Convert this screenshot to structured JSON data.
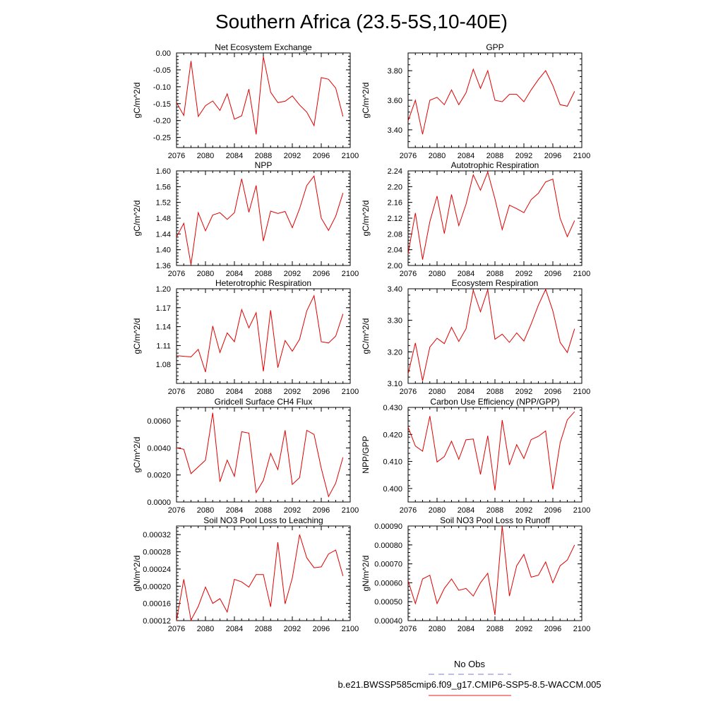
{
  "figure": {
    "title": "Southern Africa (23.5-5S,10-40E)",
    "legend": {
      "obs_label": "No Obs",
      "obs_color": "#7b7bd6",
      "model_label": "b.e21.BWSSP585cmip6.f09_g17.CMIP6-SSP5-8.5-WACCM.005",
      "model_color": "#e02020"
    },
    "line_color": "#e00000"
  },
  "chart_data": [
    {
      "type": "line",
      "title": "Net Ecosystem Exchange",
      "ylabel": "gC/m^2/d",
      "xlim": [
        2076,
        2100
      ],
      "ylim": [
        -0.28,
        0.0
      ],
      "xticks": [
        2076,
        2080,
        2084,
        2088,
        2092,
        2096,
        2100
      ],
      "yticks": [
        "0.00",
        "-0.05",
        "-0.10",
        "-0.15",
        "-0.20",
        "-0.25"
      ],
      "x": [
        2076,
        2077,
        2078,
        2079,
        2080,
        2081,
        2082,
        2083,
        2084,
        2085,
        2086,
        2087,
        2088,
        2089,
        2090,
        2091,
        2092,
        2093,
        2094,
        2095,
        2096,
        2097,
        2098,
        2099
      ],
      "y": [
        -0.147,
        -0.185,
        -0.024,
        -0.188,
        -0.156,
        -0.142,
        -0.17,
        -0.121,
        -0.196,
        -0.186,
        -0.107,
        -0.241,
        -0.011,
        -0.116,
        -0.147,
        -0.143,
        -0.127,
        -0.154,
        -0.175,
        -0.215,
        -0.073,
        -0.078,
        -0.104,
        -0.188
      ]
    },
    {
      "type": "line",
      "title": "GPP",
      "ylabel": "gC/m^2/d",
      "xlim": [
        2076,
        2100
      ],
      "ylim": [
        3.28,
        3.92
      ],
      "xticks": [
        2076,
        2080,
        2084,
        2088,
        2092,
        2096,
        2100
      ],
      "yticks": [
        "3.80",
        "3.60",
        "3.40"
      ],
      "x": [
        2076,
        2077,
        2078,
        2079,
        2080,
        2081,
        2082,
        2083,
        2084,
        2085,
        2086,
        2087,
        2088,
        2089,
        2090,
        2091,
        2092,
        2093,
        2094,
        2095,
        2096,
        2097,
        2098,
        2099
      ],
      "y": [
        3.46,
        3.6,
        3.37,
        3.6,
        3.62,
        3.57,
        3.67,
        3.57,
        3.65,
        3.81,
        3.68,
        3.8,
        3.6,
        3.59,
        3.64,
        3.64,
        3.59,
        3.67,
        3.74,
        3.8,
        3.7,
        3.57,
        3.56,
        3.66
      ]
    },
    {
      "type": "line",
      "title": "NPP",
      "ylabel": "gC/m^2/d",
      "xlim": [
        2076,
        2100
      ],
      "ylim": [
        1.36,
        1.6
      ],
      "xticks": [
        2076,
        2080,
        2084,
        2088,
        2092,
        2096,
        2100
      ],
      "yticks": [
        "1.60",
        "1.56",
        "1.52",
        "1.48",
        "1.44",
        "1.40",
        "1.36"
      ],
      "x": [
        2076,
        2077,
        2078,
        2079,
        2080,
        2081,
        2082,
        2083,
        2084,
        2085,
        2086,
        2087,
        2088,
        2089,
        2090,
        2091,
        2092,
        2093,
        2094,
        2095,
        2096,
        2097,
        2098,
        2099
      ],
      "y": [
        1.432,
        1.467,
        1.362,
        1.494,
        1.448,
        1.488,
        1.494,
        1.477,
        1.494,
        1.58,
        1.495,
        1.563,
        1.422,
        1.498,
        1.492,
        1.497,
        1.456,
        1.504,
        1.563,
        1.587,
        1.48,
        1.449,
        1.485,
        1.544
      ]
    },
    {
      "type": "line",
      "title": "Autotrophic Respiration",
      "ylabel": "gC/m^2/d",
      "xlim": [
        2076,
        2100
      ],
      "ylim": [
        2.0,
        2.24
      ],
      "xticks": [
        2076,
        2080,
        2084,
        2088,
        2092,
        2096,
        2100
      ],
      "yticks": [
        "2.24",
        "2.20",
        "2.16",
        "2.12",
        "2.08",
        "2.04",
        "2.00"
      ],
      "x": [
        2076,
        2077,
        2078,
        2079,
        2080,
        2081,
        2082,
        2083,
        2084,
        2085,
        2086,
        2087,
        2088,
        2089,
        2090,
        2091,
        2092,
        2093,
        2094,
        2095,
        2096,
        2097,
        2098,
        2099
      ],
      "y": [
        2.03,
        2.133,
        2.015,
        2.111,
        2.176,
        2.081,
        2.18,
        2.101,
        2.155,
        2.23,
        2.191,
        2.237,
        2.169,
        2.091,
        2.153,
        2.144,
        2.134,
        2.167,
        2.183,
        2.212,
        2.219,
        2.12,
        2.073,
        2.114
      ]
    },
    {
      "type": "line",
      "title": "Heterotrophic Respiration",
      "ylabel": "gC/m^2/d",
      "xlim": [
        2076,
        2100
      ],
      "ylim": [
        1.05,
        1.2
      ],
      "xticks": [
        2076,
        2080,
        2084,
        2088,
        2092,
        2096,
        2100
      ],
      "yticks": [
        "1.20",
        "1.17",
        "1.14",
        "1.11",
        "1.08"
      ],
      "x": [
        2076,
        2077,
        2078,
        2079,
        2080,
        2081,
        2082,
        2083,
        2084,
        2085,
        2086,
        2087,
        2088,
        2089,
        2090,
        2091,
        2092,
        2093,
        2094,
        2095,
        2096,
        2097,
        2098,
        2099
      ],
      "y": [
        1.094,
        1.093,
        1.092,
        1.104,
        1.068,
        1.141,
        1.099,
        1.13,
        1.116,
        1.167,
        1.138,
        1.162,
        1.069,
        1.166,
        1.075,
        1.118,
        1.101,
        1.12,
        1.165,
        1.189,
        1.116,
        1.114,
        1.125,
        1.16
      ]
    },
    {
      "type": "line",
      "title": "Ecosystem Respiration",
      "ylabel": "gC/m^2/d",
      "xlim": [
        2076,
        2100
      ],
      "ylim": [
        3.1,
        3.4
      ],
      "xticks": [
        2076,
        2080,
        2084,
        2088,
        2092,
        2096,
        2100
      ],
      "yticks": [
        "3.40",
        "3.30",
        "3.20",
        "3.10"
      ],
      "x": [
        2076,
        2077,
        2078,
        2079,
        2080,
        2081,
        2082,
        2083,
        2084,
        2085,
        2086,
        2087,
        2088,
        2089,
        2090,
        2091,
        2092,
        2093,
        2094,
        2095,
        2096,
        2097,
        2098,
        2099
      ],
      "y": [
        3.13,
        3.228,
        3.108,
        3.215,
        3.243,
        3.226,
        3.278,
        3.233,
        3.273,
        3.395,
        3.327,
        3.397,
        3.24,
        3.256,
        3.23,
        3.26,
        3.234,
        3.288,
        3.348,
        3.398,
        3.33,
        3.23,
        3.198,
        3.273
      ]
    },
    {
      "type": "line",
      "title": "Gridcell Surface CH4 Flux",
      "ylabel": "gC/m^2/d",
      "xlim": [
        2076,
        2100
      ],
      "ylim": [
        0.0,
        0.007
      ],
      "xticks": [
        2076,
        2080,
        2084,
        2088,
        2092,
        2096,
        2100
      ],
      "yticks": [
        "0.0060",
        "0.0040",
        "0.0020",
        "0.0000"
      ],
      "x": [
        2076,
        2077,
        2078,
        2079,
        2080,
        2081,
        2082,
        2083,
        2084,
        2085,
        2086,
        2087,
        2088,
        2089,
        2090,
        2091,
        2092,
        2093,
        2094,
        2095,
        2096,
        2097,
        2098,
        2099
      ],
      "y": [
        0.004,
        0.0039,
        0.0021,
        0.0026,
        0.0031,
        0.0066,
        0.0015,
        0.0031,
        0.0019,
        0.0052,
        0.0051,
        0.0007,
        0.0016,
        0.0036,
        0.0024,
        0.0053,
        0.0013,
        0.0018,
        0.0053,
        0.005,
        0.0025,
        0.0004,
        0.0014,
        0.0033
      ]
    },
    {
      "type": "line",
      "title": "Carbon Use Efficiency (NPP/GPP)",
      "ylabel": "NPP/GPP",
      "xlim": [
        2076,
        2100
      ],
      "ylim": [
        0.395,
        0.43
      ],
      "xticks": [
        2076,
        2080,
        2084,
        2088,
        2092,
        2096,
        2100
      ],
      "yticks": [
        "0.430",
        "0.420",
        "0.410",
        "0.400"
      ],
      "x": [
        2076,
        2077,
        2078,
        2079,
        2080,
        2081,
        2082,
        2083,
        2084,
        2085,
        2086,
        2087,
        2088,
        2089,
        2090,
        2091,
        2092,
        2093,
        2094,
        2095,
        2096,
        2097,
        2098,
        2099
      ],
      "y": [
        0.4227,
        0.4157,
        0.4138,
        0.4268,
        0.4098,
        0.4118,
        0.4175,
        0.4108,
        0.418,
        0.4183,
        0.4052,
        0.4195,
        0.3993,
        0.4253,
        0.4087,
        0.4162,
        0.4111,
        0.4181,
        0.4193,
        0.4213,
        0.3997,
        0.4168,
        0.4254,
        0.4284
      ]
    },
    {
      "type": "line",
      "title": "Soil NO3 Pool Loss to Leaching",
      "ylabel": "gN/m^2/d",
      "xlim": [
        2076,
        2100
      ],
      "ylim": [
        0.00012,
        0.00034
      ],
      "xticks": [
        2076,
        2080,
        2084,
        2088,
        2092,
        2096,
        2100
      ],
      "yticks": [
        "0.00032",
        "0.00028",
        "0.00024",
        "0.00020",
        "0.00016",
        "0.00012"
      ],
      "x": [
        2076,
        2077,
        2078,
        2079,
        2080,
        2081,
        2082,
        2083,
        2084,
        2085,
        2086,
        2087,
        2088,
        2089,
        2090,
        2091,
        2092,
        2093,
        2094,
        2095,
        2096,
        2097,
        2098,
        2099
      ],
      "y": [
        0.00012,
        0.000216,
        0.000121,
        0.000153,
        0.000198,
        0.00016,
        0.000171,
        0.00014,
        0.000216,
        0.00021,
        0.000198,
        0.000227,
        0.000227,
        0.000152,
        0.000302,
        0.000159,
        0.000219,
        0.00032,
        0.000266,
        0.000243,
        0.000245,
        0.000275,
        0.000284,
        0.000224
      ]
    },
    {
      "type": "line",
      "title": "Soil NO3 Pool Loss to Runoff",
      "ylabel": "gN/m^2/d",
      "xlim": [
        2076,
        2100
      ],
      "ylim": [
        0.0004,
        0.0009
      ],
      "xticks": [
        2076,
        2080,
        2084,
        2088,
        2092,
        2096,
        2100
      ],
      "yticks": [
        "0.00090",
        "0.00080",
        "0.00070",
        "0.00060",
        "0.00050",
        "0.00040"
      ],
      "x": [
        2076,
        2077,
        2078,
        2079,
        2080,
        2081,
        2082,
        2083,
        2084,
        2085,
        2086,
        2087,
        2088,
        2089,
        2090,
        2091,
        2092,
        2093,
        2094,
        2095,
        2096,
        2097,
        2098,
        2099
      ],
      "y": [
        0.00061,
        0.00049,
        0.00062,
        0.00064,
        0.00049,
        0.00057,
        0.00062,
        0.00056,
        0.00057,
        0.00053,
        0.0006,
        0.00065,
        0.00043,
        0.0009,
        0.00053,
        0.00069,
        0.00075,
        0.00063,
        0.00064,
        0.00071,
        0.0006,
        0.00069,
        0.00072,
        0.0008
      ]
    }
  ]
}
